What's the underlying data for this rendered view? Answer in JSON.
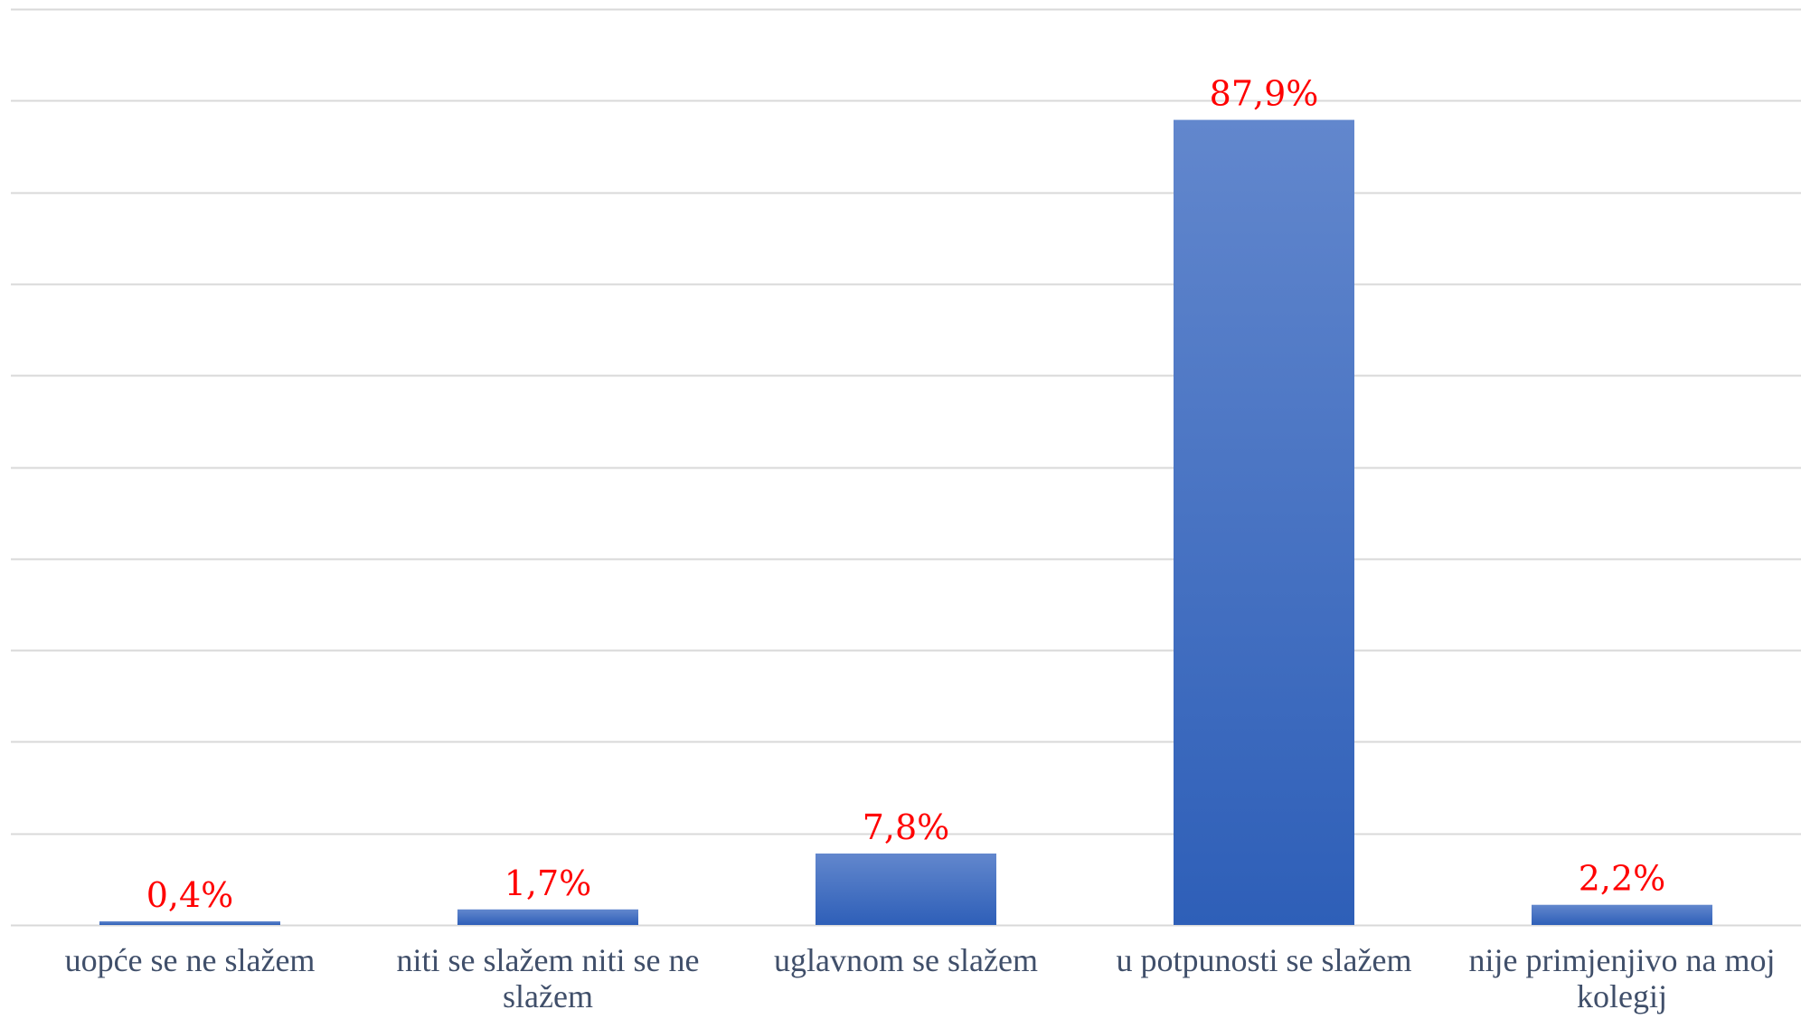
{
  "chart_data": {
    "type": "bar",
    "categories": [
      "uopće se ne slažem",
      "niti se slažem niti se ne slažem",
      "uglavnom se slažem",
      "u potpunosti se slažem",
      "nije primjenjivo na moj kolegij"
    ],
    "category_lines": [
      [
        "uopće se ne slažem"
      ],
      [
        "niti se slažem niti se ne",
        "slažem"
      ],
      [
        "uglavnom se slažem"
      ],
      [
        "u potpunosti se slažem"
      ],
      [
        "nije primjenjivo na moj",
        "kolegij"
      ]
    ],
    "values": [
      0.4,
      1.7,
      7.8,
      87.9,
      2.2
    ],
    "data_labels": [
      "0,4%",
      "1,7%",
      "7,8%",
      "87,9%",
      "2,2%"
    ],
    "unit": "%",
    "ylim": [
      0,
      100
    ],
    "y_tick_step": 10,
    "title": "",
    "xlabel": "",
    "ylabel": "",
    "grid": true,
    "legend": "none",
    "colors": {
      "bar_top": "#6287cd",
      "bar_bottom": "#2e5fb8",
      "data_label": "#ff0000",
      "category_label": "#404f6a",
      "gridline": "#d9d9d9"
    }
  }
}
